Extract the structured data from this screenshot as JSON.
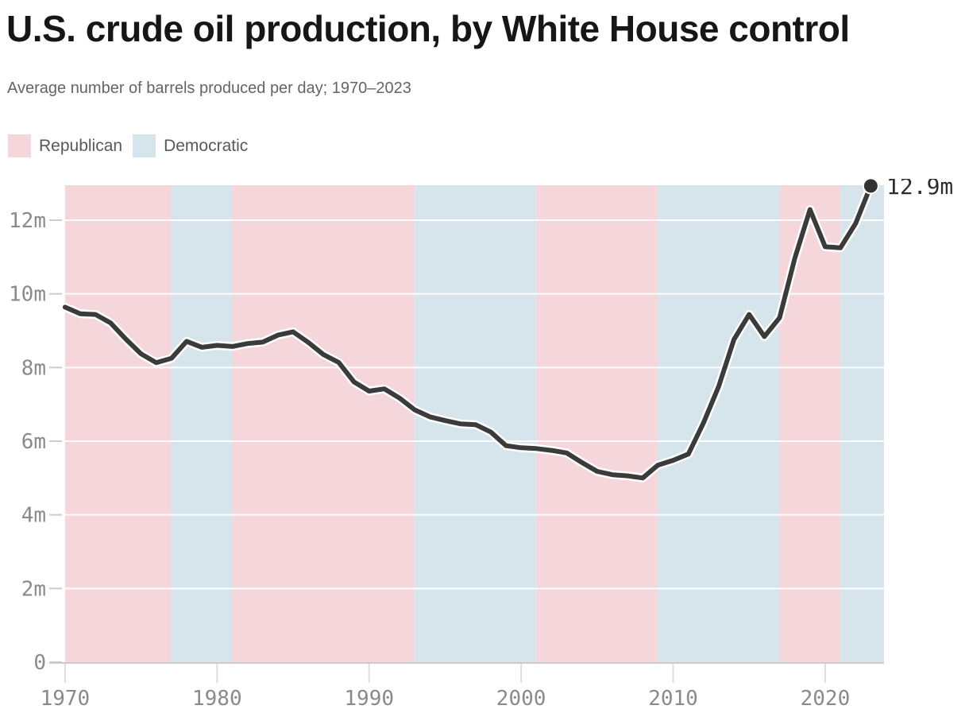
{
  "header": {
    "title": "U.S. crude oil production, by White House control",
    "subtitle": "Average number of barrels produced per day; 1970–2023"
  },
  "legend": {
    "items": [
      {
        "label": "Republican",
        "color": "#f5d6da"
      },
      {
        "label": "Democratic",
        "color": "#d5e5eb"
      }
    ]
  },
  "chart_data": {
    "type": "line",
    "title": "U.S. crude oil production, by White House control",
    "subtitle": "Average number of barrels produced per day; 1970–2023",
    "unit": "million barrels per day",
    "series": [
      {
        "name": "U.S. crude oil production",
        "x": [
          1970,
          1971,
          1972,
          1973,
          1974,
          1975,
          1976,
          1977,
          1978,
          1979,
          1980,
          1981,
          1982,
          1983,
          1984,
          1985,
          1986,
          1987,
          1988,
          1989,
          1990,
          1991,
          1992,
          1993,
          1994,
          1995,
          1996,
          1997,
          1998,
          1999,
          2000,
          2001,
          2002,
          2003,
          2004,
          2005,
          2006,
          2007,
          2008,
          2009,
          2010,
          2011,
          2012,
          2013,
          2014,
          2015,
          2016,
          2017,
          2018,
          2019,
          2020,
          2021,
          2022,
          2023
        ],
        "values": [
          9.64,
          9.46,
          9.44,
          9.21,
          8.77,
          8.37,
          8.13,
          8.25,
          8.71,
          8.55,
          8.6,
          8.57,
          8.65,
          8.69,
          8.88,
          8.97,
          8.68,
          8.35,
          8.14,
          7.61,
          7.36,
          7.42,
          7.17,
          6.85,
          6.66,
          6.56,
          6.47,
          6.45,
          6.25,
          5.88,
          5.82,
          5.8,
          5.75,
          5.68,
          5.42,
          5.18,
          5.09,
          5.06,
          5.0,
          5.35,
          5.48,
          5.65,
          6.5,
          7.49,
          8.76,
          9.44,
          8.84,
          9.35,
          10.96,
          12.29,
          11.28,
          11.25,
          11.91,
          12.93
        ]
      }
    ],
    "end_point_label": "12.9m",
    "bands": [
      {
        "party": "Republican",
        "start": 1970,
        "end": 1977
      },
      {
        "party": "Democratic",
        "start": 1977,
        "end": 1981
      },
      {
        "party": "Republican",
        "start": 1981,
        "end": 1993
      },
      {
        "party": "Democratic",
        "start": 1993,
        "end": 2001
      },
      {
        "party": "Republican",
        "start": 2001,
        "end": 2009
      },
      {
        "party": "Democratic",
        "start": 2009,
        "end": 2017
      },
      {
        "party": "Republican",
        "start": 2017,
        "end": 2021
      },
      {
        "party": "Democratic",
        "start": 2021,
        "end": 2024
      }
    ],
    "y_ticks": [
      {
        "value": 0,
        "label": "0"
      },
      {
        "value": 2,
        "label": "2m"
      },
      {
        "value": 4,
        "label": "4m"
      },
      {
        "value": 6,
        "label": "6m"
      },
      {
        "value": 8,
        "label": "8m"
      },
      {
        "value": 10,
        "label": "10m"
      },
      {
        "value": 12,
        "label": "12m"
      }
    ],
    "x_ticks": [
      1970,
      1980,
      1990,
      2000,
      2010,
      2020
    ],
    "ylim": [
      0,
      12.95
    ],
    "xlim": [
      1969.9,
      2023.87
    ],
    "grid": true,
    "legend_position": "top-left",
    "colors": {
      "republican_band": "#f5d6da",
      "democratic_band": "#d5e5eb",
      "line": "#3b3b3b",
      "line_halo": "#ffffff",
      "end_dot": "#333333",
      "gridline": "rgba(255,255,255,0.9)",
      "axis": "#cccccc",
      "tick": "#dddddd",
      "axis_text": "#8a8a8a"
    }
  }
}
